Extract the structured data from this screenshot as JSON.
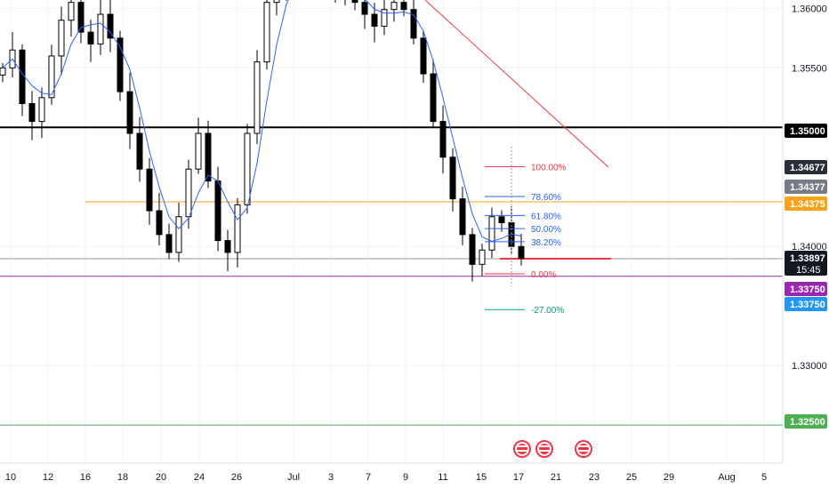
{
  "chart_data": {
    "type": "candlestick",
    "y_axis": {
      "range": [
        1.3218,
        1.3607
      ],
      "ticks": [
        "1.36000",
        "1.35500",
        "1.34000",
        "1.33000"
      ],
      "tick_values": [
        1.36,
        1.355,
        1.34,
        1.33
      ]
    },
    "x_axis": {
      "ticks": [
        "10",
        "12",
        "16",
        "18",
        "20",
        "24",
        "26",
        "Jul",
        "3",
        "7",
        "9",
        "11",
        "15",
        "17",
        "21",
        "23",
        "25",
        "29",
        "Aug",
        "5"
      ]
    },
    "horizontal_lines": [
      {
        "name": "level-1-35000",
        "value": 1.35,
        "color": "#000000",
        "label": "1.35000"
      },
      {
        "name": "level-1-34375",
        "value": 1.34375,
        "color": "#f7a21b",
        "label": "1.34375"
      },
      {
        "name": "level-1-33750",
        "value": 1.3375,
        "color": "#9c27b0",
        "label": "1.33750"
      },
      {
        "name": "level-1-32500",
        "value": 1.325,
        "color": "#4caf50",
        "label": "1.32500"
      },
      {
        "name": "current-price",
        "value": 1.33897,
        "color": "#9598a1",
        "label": "1.33897"
      }
    ],
    "price_badges": [
      {
        "label": "1.35000",
        "value": 1.35,
        "color": "#000000"
      },
      {
        "label": "1.34677",
        "value": 1.34677,
        "color": "#2a2e39"
      },
      {
        "label": "1.34377",
        "value": 1.34377,
        "color": "#787b86"
      },
      {
        "label": "1.34375",
        "value": 1.34375,
        "color": "#f7a21b"
      },
      {
        "label": "1.33897",
        "value": 1.33897,
        "color": "#131722",
        "sub": "15:45"
      },
      {
        "label": "1.33750",
        "value": 1.3375,
        "color": "#9c27b0"
      },
      {
        "label": "1.33750",
        "value": 1.3364,
        "color": "#2196f3"
      },
      {
        "label": "1.32500",
        "value": 1.325,
        "color": "#4caf50"
      }
    ],
    "fibonacci": [
      {
        "label": "100.00%",
        "value": 1.3467,
        "color": "#f23645"
      },
      {
        "label": "78.60%",
        "value": 1.3442,
        "color": "#2962ff"
      },
      {
        "label": "61.80%",
        "value": 1.3426,
        "color": "#2962ff"
      },
      {
        "label": "50.00%",
        "value": 1.3415,
        "color": "#2962ff"
      },
      {
        "label": "38.20%",
        "value": 1.3404,
        "color": "#2962ff"
      },
      {
        "label": "0.00%",
        "value": 1.3377,
        "color": "#f23645"
      },
      {
        "label": "-27.00%",
        "value": 1.3347,
        "color": "#089981"
      }
    ],
    "trendline": {
      "color": "#f23645"
    },
    "price_path": [
      1.355,
      1.3565,
      1.352,
      1.3505,
      1.3525,
      1.356,
      1.359,
      1.3605,
      1.358,
      1.357,
      1.3595,
      1.3575,
      1.353,
      1.3495,
      1.3465,
      1.343,
      1.341,
      1.3395,
      1.3425,
      1.3465,
      1.3495,
      1.3455,
      1.3405,
      1.3395,
      1.3435,
      1.3495,
      1.3555,
      1.3605,
      1.3622,
      1.3632,
      1.3628,
      1.3634,
      1.3632,
      1.3628,
      1.362,
      1.3612,
      1.3605,
      1.3595,
      1.3585,
      1.3599,
      1.3605,
      1.3599,
      1.3575,
      1.3545,
      1.3505,
      1.3475,
      1.344,
      1.341,
      1.3385,
      1.3397,
      1.3425,
      1.342,
      1.34,
      1.339
    ]
  }
}
